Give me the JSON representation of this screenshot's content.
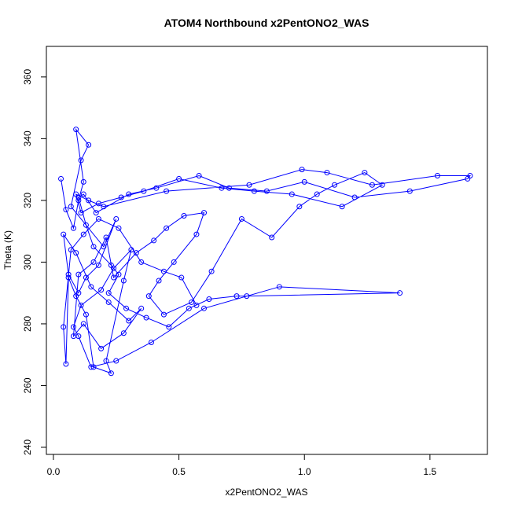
{
  "chart_data": {
    "type": "scatter",
    "connect": true,
    "title": "ATOM4 Northbound x2PentONO2_WAS",
    "xlabel": "x2PentONO2_WAS",
    "ylabel": "Theta (K)",
    "color": "#0000ff",
    "xlim": [
      -0.028,
      1.729
    ],
    "ylim": [
      237.7,
      369.9
    ],
    "xticks": [
      {
        "value": 0,
        "label": "0.0"
      },
      0.5,
      {
        "value": 1,
        "label": "1.0"
      },
      1.5
    ],
    "yticks": [
      240,
      260,
      280,
      300,
      320,
      340,
      360
    ],
    "x": [
      0.03,
      0.05,
      0.08,
      0.1,
      0.12,
      0.09,
      0.14,
      0.11,
      0.07,
      0.2,
      0.25,
      0.18,
      0.13,
      0.1,
      0.06,
      0.04,
      0.09,
      0.15,
      0.22,
      0.3,
      0.35,
      0.28,
      0.19,
      0.12,
      0.08,
      0.1,
      0.16,
      0.21,
      0.24,
      0.33,
      0.4,
      0.45,
      0.52,
      0.6,
      0.57,
      0.48,
      0.42,
      0.38,
      0.44,
      0.55,
      0.63,
      0.75,
      0.87,
      0.98,
      1.05,
      1.12,
      1.24,
      1.31,
      1.15,
      0.95,
      0.8,
      0.67,
      0.5,
      0.36,
      0.27,
      0.18,
      0.11,
      0.09,
      0.14,
      0.2,
      0.45,
      0.78,
      0.99,
      1.09,
      1.27,
      1.53,
      1.66,
      1.65,
      1.42,
      1.2,
      1.0,
      0.85,
      0.7,
      0.58,
      0.41,
      0.3,
      0.17,
      0.12,
      0.1,
      0.13,
      0.16,
      0.23,
      0.26,
      0.22,
      0.29,
      0.37,
      0.46,
      0.54,
      0.62,
      0.73,
      0.77,
      1.38,
      0.9,
      0.6,
      0.39,
      0.25,
      0.15,
      0.1,
      0.08,
      0.11,
      0.19,
      0.24,
      0.31,
      0.28,
      0.21,
      0.23,
      0.16,
      0.13,
      0.09,
      0.06,
      0.05,
      0.04,
      0.07,
      0.12,
      0.18,
      0.26,
      0.35,
      0.44,
      0.51,
      0.57
    ],
    "values": [
      327,
      317,
      311,
      320,
      326,
      343,
      338,
      333,
      318,
      305,
      314,
      299,
      295,
      290,
      296,
      309,
      303,
      292,
      287,
      281,
      285,
      277,
      272,
      280,
      276,
      296,
      300,
      308,
      295,
      303,
      307,
      311,
      315,
      316,
      309,
      300,
      294,
      289,
      283,
      287,
      297,
      314,
      308,
      318,
      322,
      325,
      329,
      325,
      318,
      322,
      323,
      324,
      327,
      323,
      321,
      319,
      316,
      322,
      320,
      318,
      323,
      325,
      330,
      329,
      325,
      328,
      328,
      327,
      323,
      321,
      326,
      323,
      324,
      328,
      324,
      322,
      316,
      322,
      321,
      312,
      305,
      299,
      296,
      290,
      285,
      282,
      279,
      285,
      288,
      289,
      289,
      290,
      292,
      285,
      274,
      268,
      266,
      276,
      279,
      286,
      291,
      298,
      304,
      294,
      268,
      264,
      266,
      283,
      289,
      295,
      267,
      279,
      304,
      309,
      314,
      311,
      300,
      297,
      295,
      286
    ]
  }
}
